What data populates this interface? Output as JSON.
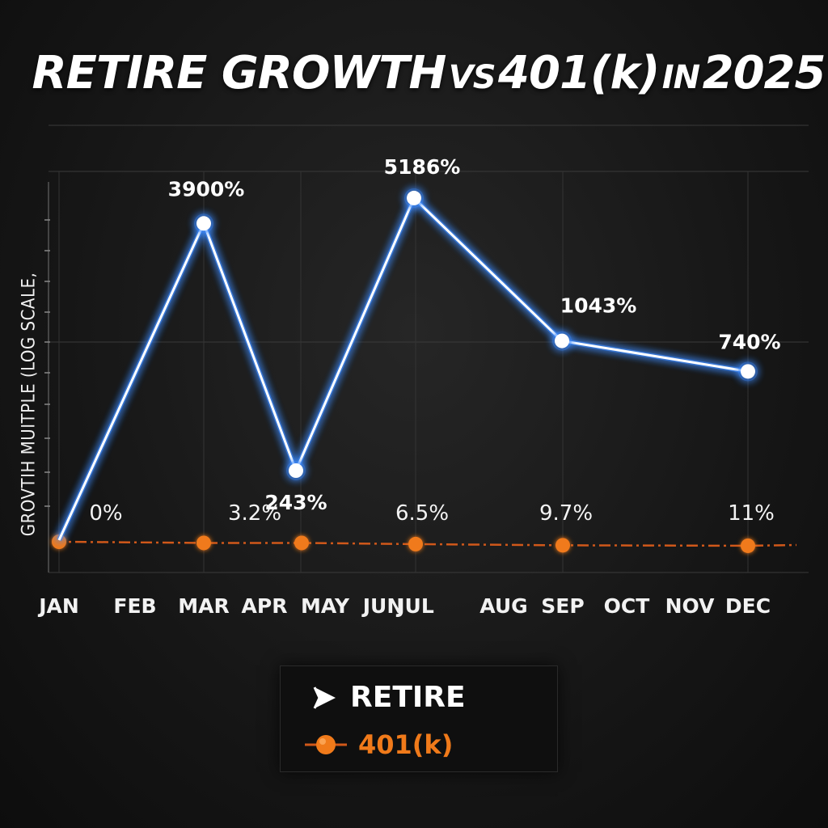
{
  "title": {
    "part1": "RETIRE GROWTH",
    "part2": "VS",
    "part3": "401(k)",
    "part4": "IN",
    "part5": "2025"
  },
  "legend": {
    "retire_label": "RETIRE",
    "k_label": "401(k)",
    "retire_icon": "play-arrow-icon",
    "k_icon": "orange-dot-icon"
  },
  "colors": {
    "retire": "#ffffff",
    "retire_glow": "#3d8bff",
    "k": "#f07a1a",
    "k_line": "#d0581a"
  },
  "chart_data": {
    "type": "line",
    "title": "RETIRE GROWTH VS 401(k) IN 2025",
    "ylabel": "GROVTIH MUITPLE (LOG SCALE,",
    "xlabel": "",
    "yscale": "log",
    "grid": true,
    "legend_position": "bottom-center",
    "categories": [
      "JAN",
      "FEB",
      "MAR",
      "APR",
      "MAY",
      "JUN",
      "JUL",
      "AUG",
      "SEP",
      "OCT",
      "NOV",
      "DEC"
    ],
    "series": [
      {
        "name": "RETIRE",
        "points": [
          {
            "x": "JAN",
            "y": 0,
            "label": ""
          },
          {
            "x": "MAR",
            "y": 3900,
            "label": "3900%"
          },
          {
            "x": "APR",
            "y": 243,
            "label": "243%"
          },
          {
            "x": "JUL",
            "y": 5186,
            "label": "5186%"
          },
          {
            "x": "SEP",
            "y": 1043,
            "label": "1043%"
          },
          {
            "x": "DEC",
            "y": 740,
            "label": "740%"
          }
        ]
      },
      {
        "name": "401(k)",
        "points": [
          {
            "x": "JAN",
            "y": 0,
            "label": "0%"
          },
          {
            "x": "MAR",
            "y": 3.2,
            "label": "3.2%"
          },
          {
            "x": "APR",
            "y": 3.2,
            "label": ""
          },
          {
            "x": "JUL",
            "y": 6.5,
            "label": "6.5%"
          },
          {
            "x": "SEP",
            "y": 9.7,
            "label": "9.7%"
          },
          {
            "x": "DEC",
            "y": 11,
            "label": "11%"
          }
        ]
      }
    ]
  }
}
